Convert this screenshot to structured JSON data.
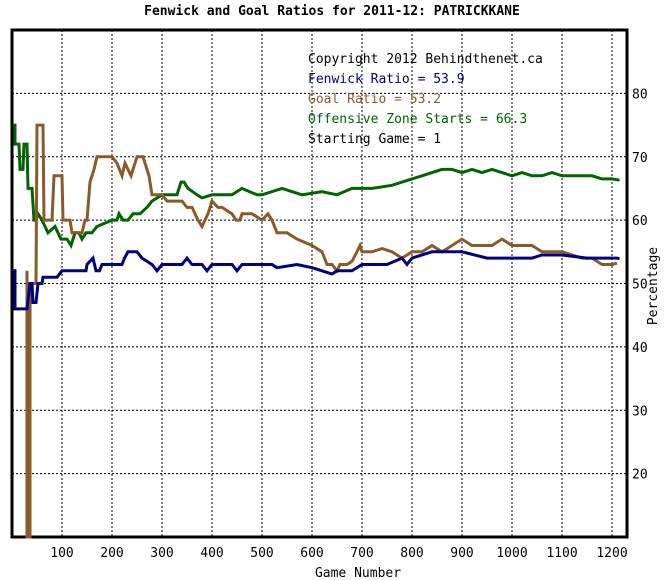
{
  "chart_data": {
    "type": "line",
    "title": "Fenwick and Goal Ratios for 2011-12: PATRICKKANE",
    "xlabel": "Game Number",
    "ylabel": "Percentage",
    "xlim": [
      0,
      1230
    ],
    "ylim": [
      10,
      90
    ],
    "x_ticks": [
      100,
      200,
      300,
      400,
      500,
      600,
      700,
      800,
      900,
      1000,
      1100,
      1200
    ],
    "y_ticks": [
      20,
      30,
      40,
      50,
      60,
      70,
      80
    ],
    "grid": true,
    "legend": {
      "placement": "top-right",
      "lines": [
        {
          "text": "Copyright 2012 Behindthenet.ca",
          "color": "#000000"
        },
        {
          "text": "Fenwick Ratio = 53.9",
          "color": "#000080"
        },
        {
          "text": "Goal Ratio = 53.2",
          "color": "#8b5a2b"
        },
        {
          "text": "Offensive Zone Starts = 66.3",
          "color": "#006400"
        },
        {
          "text": "Starting Game = 1",
          "color": "#000000"
        }
      ]
    },
    "series": [
      {
        "key": "fenwick",
        "color": "#000080",
        "points": [
          [
            2,
            52
          ],
          [
            6,
            52
          ],
          [
            6,
            46
          ],
          [
            30,
            46
          ],
          [
            36,
            50
          ],
          [
            40,
            50
          ],
          [
            42,
            47
          ],
          [
            48,
            47
          ],
          [
            52,
            50
          ],
          [
            60,
            50
          ],
          [
            62,
            51
          ],
          [
            90,
            51
          ],
          [
            100,
            52
          ],
          [
            148,
            52
          ],
          [
            150,
            53
          ],
          [
            162,
            54
          ],
          [
            168,
            52
          ],
          [
            175,
            52
          ],
          [
            180,
            53
          ],
          [
            220,
            53
          ],
          [
            225,
            54
          ],
          [
            232,
            55
          ],
          [
            250,
            55
          ],
          [
            260,
            54
          ],
          [
            280,
            53
          ],
          [
            290,
            52
          ],
          [
            300,
            53
          ],
          [
            340,
            53
          ],
          [
            350,
            54
          ],
          [
            360,
            53
          ],
          [
            380,
            53
          ],
          [
            390,
            52
          ],
          [
            400,
            53
          ],
          [
            440,
            53
          ],
          [
            450,
            52
          ],
          [
            460,
            53
          ],
          [
            520,
            53
          ],
          [
            530,
            52.5
          ],
          [
            570,
            53
          ],
          [
            600,
            52.5
          ],
          [
            620,
            52
          ],
          [
            640,
            51.5
          ],
          [
            650,
            52
          ],
          [
            680,
            52
          ],
          [
            700,
            53
          ],
          [
            750,
            53
          ],
          [
            780,
            54
          ],
          [
            790,
            53
          ],
          [
            800,
            54
          ],
          [
            840,
            55
          ],
          [
            880,
            55
          ],
          [
            900,
            55
          ],
          [
            950,
            54
          ],
          [
            1000,
            54
          ],
          [
            1040,
            54
          ],
          [
            1060,
            54.5
          ],
          [
            1100,
            54.5
          ],
          [
            1150,
            54
          ],
          [
            1200,
            54
          ],
          [
            1210,
            54
          ],
          [
            1215,
            53.9
          ]
        ]
      },
      {
        "key": "goal",
        "color": "#8b5a2b",
        "points": [
          [
            30,
            52
          ],
          [
            30,
            10
          ],
          [
            36,
            10
          ],
          [
            36,
            50
          ],
          [
            48,
            50
          ],
          [
            50,
            75
          ],
          [
            62,
            75
          ],
          [
            64,
            60
          ],
          [
            80,
            60
          ],
          [
            84,
            67
          ],
          [
            100,
            67
          ],
          [
            102,
            60
          ],
          [
            116,
            60
          ],
          [
            120,
            58
          ],
          [
            140,
            58
          ],
          [
            146,
            60
          ],
          [
            150,
            60
          ],
          [
            156,
            66
          ],
          [
            164,
            68
          ],
          [
            170,
            70
          ],
          [
            200,
            70
          ],
          [
            210,
            69
          ],
          [
            220,
            67
          ],
          [
            226,
            69
          ],
          [
            238,
            67
          ],
          [
            250,
            70
          ],
          [
            262,
            70
          ],
          [
            274,
            67
          ],
          [
            280,
            64
          ],
          [
            300,
            64
          ],
          [
            310,
            63
          ],
          [
            340,
            63
          ],
          [
            350,
            62
          ],
          [
            360,
            62
          ],
          [
            372,
            60
          ],
          [
            380,
            59
          ],
          [
            392,
            61
          ],
          [
            400,
            63
          ],
          [
            412,
            62
          ],
          [
            420,
            62
          ],
          [
            440,
            61
          ],
          [
            448,
            60
          ],
          [
            456,
            60
          ],
          [
            460,
            61
          ],
          [
            480,
            61
          ],
          [
            500,
            60
          ],
          [
            512,
            61
          ],
          [
            520,
            60
          ],
          [
            530,
            58
          ],
          [
            550,
            58
          ],
          [
            570,
            57
          ],
          [
            600,
            56
          ],
          [
            620,
            55
          ],
          [
            630,
            53
          ],
          [
            640,
            53
          ],
          [
            650,
            52
          ],
          [
            656,
            53
          ],
          [
            670,
            53
          ],
          [
            680,
            53.5
          ],
          [
            690,
            55
          ],
          [
            696,
            56
          ],
          [
            700,
            55
          ],
          [
            720,
            55
          ],
          [
            740,
            55.5
          ],
          [
            760,
            55
          ],
          [
            780,
            54
          ],
          [
            800,
            55
          ],
          [
            820,
            55
          ],
          [
            840,
            56
          ],
          [
            860,
            55
          ],
          [
            880,
            56
          ],
          [
            900,
            57
          ],
          [
            920,
            56
          ],
          [
            940,
            56
          ],
          [
            960,
            56
          ],
          [
            980,
            57
          ],
          [
            1000,
            56
          ],
          [
            1020,
            56
          ],
          [
            1040,
            56
          ],
          [
            1060,
            55
          ],
          [
            1080,
            55
          ],
          [
            1100,
            55
          ],
          [
            1140,
            54
          ],
          [
            1160,
            54
          ],
          [
            1180,
            53
          ],
          [
            1200,
            53
          ],
          [
            1210,
            53.2
          ]
        ]
      },
      {
        "key": "ozone",
        "color": "#006400",
        "points": [
          [
            2,
            75
          ],
          [
            6,
            75
          ],
          [
            6,
            72
          ],
          [
            14,
            72
          ],
          [
            16,
            68
          ],
          [
            22,
            68
          ],
          [
            24,
            72
          ],
          [
            30,
            72
          ],
          [
            32,
            65
          ],
          [
            40,
            65
          ],
          [
            44,
            60
          ],
          [
            48,
            60
          ],
          [
            52,
            61
          ],
          [
            60,
            60
          ],
          [
            72,
            58
          ],
          [
            86,
            59
          ],
          [
            98,
            57
          ],
          [
            110,
            57
          ],
          [
            118,
            56
          ],
          [
            126,
            58
          ],
          [
            134,
            58
          ],
          [
            140,
            57
          ],
          [
            148,
            58
          ],
          [
            160,
            58
          ],
          [
            170,
            59
          ],
          [
            200,
            60
          ],
          [
            210,
            60
          ],
          [
            214,
            61
          ],
          [
            222,
            60
          ],
          [
            232,
            60
          ],
          [
            242,
            61
          ],
          [
            256,
            61
          ],
          [
            270,
            62
          ],
          [
            280,
            63
          ],
          [
            300,
            64
          ],
          [
            330,
            64
          ],
          [
            338,
            66
          ],
          [
            344,
            66
          ],
          [
            352,
            65
          ],
          [
            370,
            64
          ],
          [
            380,
            63.5
          ],
          [
            400,
            64
          ],
          [
            420,
            64
          ],
          [
            440,
            64
          ],
          [
            460,
            65
          ],
          [
            490,
            64
          ],
          [
            500,
            64
          ],
          [
            540,
            65
          ],
          [
            580,
            64
          ],
          [
            620,
            64.5
          ],
          [
            650,
            64
          ],
          [
            680,
            65
          ],
          [
            720,
            65
          ],
          [
            760,
            65.5
          ],
          [
            780,
            66
          ],
          [
            800,
            66.5
          ],
          [
            820,
            67
          ],
          [
            840,
            67.5
          ],
          [
            860,
            68
          ],
          [
            880,
            68
          ],
          [
            900,
            67.5
          ],
          [
            920,
            68
          ],
          [
            940,
            67.5
          ],
          [
            960,
            68
          ],
          [
            980,
            67.5
          ],
          [
            1000,
            67
          ],
          [
            1020,
            67.5
          ],
          [
            1040,
            67
          ],
          [
            1060,
            67
          ],
          [
            1080,
            67.5
          ],
          [
            1100,
            67
          ],
          [
            1120,
            67
          ],
          [
            1140,
            67
          ],
          [
            1160,
            67
          ],
          [
            1180,
            66.5
          ],
          [
            1200,
            66.5
          ],
          [
            1215,
            66.3
          ]
        ]
      }
    ]
  }
}
